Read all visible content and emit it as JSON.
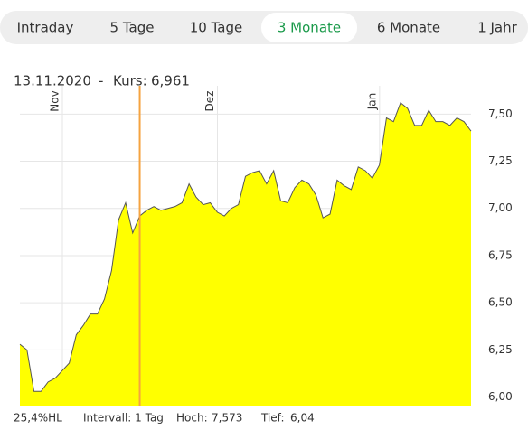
{
  "tabs": {
    "items": [
      "Intraday",
      "5 Tage",
      "10 Tage",
      "3 Monate",
      "6 Monate",
      "1 Jahr"
    ],
    "active": 3
  },
  "header": {
    "date": "13.11.2020",
    "separator": "-",
    "label": "Kurs:",
    "value": "6,961"
  },
  "chart_data": {
    "type": "area",
    "color": "#ffff00",
    "line_color": "#555555",
    "grid": true,
    "categories": [
      null,
      null,
      null,
      null,
      null,
      "Nov",
      null,
      null,
      null,
      null,
      null,
      null,
      null,
      null,
      null,
      null,
      null,
      null,
      null,
      null,
      null,
      null,
      null,
      null,
      null,
      null,
      null,
      "Dez",
      null,
      null,
      null,
      null,
      null,
      null,
      null,
      null,
      null,
      null,
      null,
      null,
      null,
      null,
      null,
      null,
      null,
      null,
      null,
      null,
      null,
      null,
      "Jan",
      null,
      null,
      null,
      null,
      null,
      null,
      null,
      null,
      null,
      null,
      null,
      null,
      null,
      null
    ],
    "values": [
      6.28,
      6.25,
      6.03,
      6.03,
      6.08,
      6.1,
      6.14,
      6.18,
      6.33,
      6.38,
      6.44,
      6.44,
      6.52,
      6.67,
      6.94,
      7.03,
      6.87,
      6.96,
      6.99,
      7.01,
      6.99,
      7.0,
      7.01,
      7.03,
      7.13,
      7.06,
      7.02,
      7.03,
      6.98,
      6.96,
      7.0,
      7.02,
      7.17,
      7.19,
      7.2,
      7.13,
      7.2,
      7.04,
      7.03,
      7.11,
      7.15,
      7.13,
      7.07,
      6.95,
      6.97,
      7.15,
      7.12,
      7.1,
      7.22,
      7.2,
      7.16,
      7.23,
      7.48,
      7.46,
      7.56,
      7.53,
      7.44,
      7.44,
      7.52,
      7.46,
      7.46,
      7.44,
      7.48,
      7.46,
      7.41
    ],
    "cursor": {
      "index": 17,
      "color": "#f5a340"
    },
    "ylim": [
      5.95,
      7.65
    ],
    "yticks": [
      {
        "value": 6,
        "label": "6,00"
      },
      {
        "value": 6.25,
        "label": "6,25"
      },
      {
        "value": 6.5,
        "label": "6,50"
      },
      {
        "value": 6.75,
        "label": "6,75"
      },
      {
        "value": 7,
        "label": "7,00"
      },
      {
        "value": 7.25,
        "label": "7,25"
      },
      {
        "value": 7.5,
        "label": "7,50"
      }
    ]
  },
  "footer": {
    "range": "25,4%HL",
    "interval": "Intervall: 1 Tag",
    "high_label": "Hoch:",
    "high": "7,573",
    "low_label": "Tief:",
    "low": "6,04"
  }
}
